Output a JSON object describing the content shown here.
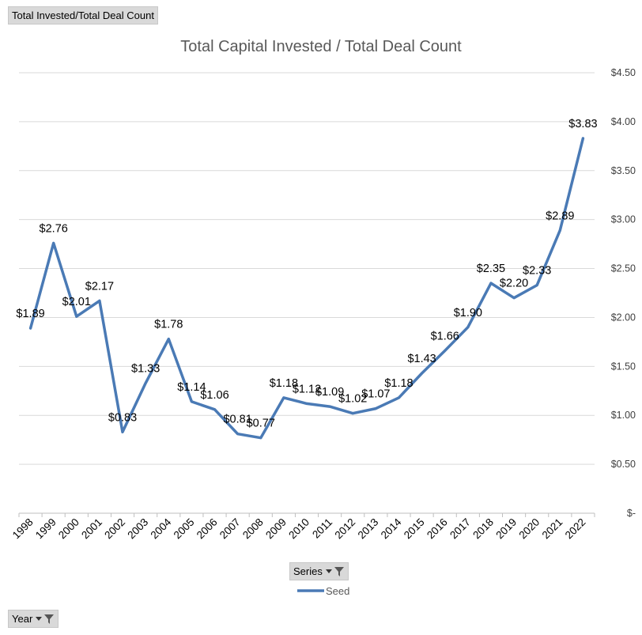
{
  "field_buttons": {
    "measure": "Total Invested/Total Deal Count",
    "series": "Series",
    "year": "Year"
  },
  "icons": {
    "filter": "filter-funnel-icon",
    "dropdown": "chevron-down-icon"
  },
  "colors": {
    "series_line": "#4a7ab5",
    "grid": "#d9d9d9",
    "title": "#595959"
  },
  "chart_data": {
    "type": "line",
    "title": "Total Capital Invested / Total Deal Count",
    "xlabel": "",
    "ylabel": "",
    "categories": [
      "1998",
      "1999",
      "2000",
      "2001",
      "2002",
      "2003",
      "2004",
      "2005",
      "2006",
      "2007",
      "2008",
      "2009",
      "2010",
      "2011",
      "2012",
      "2013",
      "2014",
      "2015",
      "2016",
      "2017",
      "2018",
      "2019",
      "2020",
      "2021",
      "2022"
    ],
    "series": [
      {
        "name": "Seed",
        "values": [
          1.89,
          2.76,
          2.01,
          2.17,
          0.83,
          1.33,
          1.78,
          1.14,
          1.06,
          0.81,
          0.77,
          1.18,
          1.12,
          1.09,
          1.02,
          1.07,
          1.18,
          1.43,
          1.66,
          1.9,
          2.35,
          2.2,
          2.33,
          2.89,
          3.83
        ],
        "labels": [
          "$1.89",
          "$2.76",
          "$2.01",
          "$2.17",
          "$0.83",
          "$1.33",
          "$1.78",
          "$1.14",
          "$1.06",
          "$0.81",
          "$0.77",
          "$1.18",
          "$1.12",
          "$1.09",
          "$1.02",
          "$1.07",
          "$1.18",
          "$1.43",
          "$1.66",
          "$1.90",
          "$2.35",
          "$2.20",
          "$2.33",
          "$2.89",
          "$3.83"
        ]
      }
    ],
    "yticks": [
      0,
      0.5,
      1.0,
      1.5,
      2.0,
      2.5,
      3.0,
      3.5,
      4.0,
      4.5
    ],
    "ytick_labels": [
      "$-",
      "$0.50",
      "$1.00",
      "$1.50",
      "$2.00",
      "$2.50",
      "$3.00",
      "$3.50",
      "$4.00",
      "$4.50"
    ],
    "ylim": [
      0,
      4.5
    ],
    "y_axis_position": "right",
    "grid": true,
    "legend_position": "bottom"
  }
}
